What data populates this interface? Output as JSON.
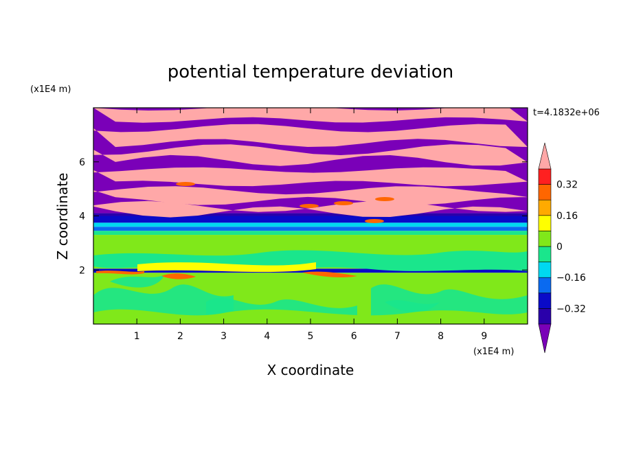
{
  "chart_data": {
    "type": "heatmap",
    "title": "potential temperature deviation",
    "xlabel": "X coordinate",
    "ylabel": "Z coordinate",
    "x_units": "(x1E4 m)",
    "y_units": "(x1E4 m)",
    "time_label": "t=4.1832e+06",
    "xlim": [
      0,
      10
    ],
    "ylim": [
      0,
      8
    ],
    "x_ticks": [
      "1",
      "2",
      "3",
      "4",
      "5",
      "6",
      "7",
      "8",
      "9"
    ],
    "y_ticks": [
      "2",
      "4",
      "6"
    ],
    "colorbar": {
      "levels": [
        -0.4,
        -0.32,
        -0.24,
        -0.16,
        -0.08,
        0,
        0.08,
        0.16,
        0.24,
        0.32,
        0.4
      ],
      "labels": [
        "0.32",
        "0.16",
        "0",
        "−0.16",
        "−0.32"
      ],
      "label_values": [
        0.32,
        0.16,
        0,
        -0.16,
        -0.32
      ],
      "colors": [
        "#7a00b8",
        "#2a00aa",
        "#0a0ac8",
        "#0a6af0",
        "#00d8f0",
        "#1ae68c",
        "#80e81a",
        "#ffff00",
        "#ffaa00",
        "#ff6600",
        "#ff2020",
        "#ffa8a8"
      ],
      "extend": "both"
    },
    "layers": [
      {
        "z_min": 0.0,
        "z_max": 1.9,
        "description_value": 0.04,
        "pattern": [
          "lower-green"
        ]
      },
      {
        "z_min": 1.9,
        "z_max": 2.05,
        "value": -0.3
      },
      {
        "z_min": 2.05,
        "z_max": 3.3,
        "value": 0.04
      },
      {
        "z_min": 3.3,
        "z_max": 3.45,
        "value": -0.05
      },
      {
        "z_min": 3.45,
        "z_max": 3.6,
        "value": -0.2
      },
      {
        "z_min": 3.6,
        "z_max": 3.75,
        "value": -0.12
      },
      {
        "z_min": 3.75,
        "z_max": 4.0,
        "value": -0.32
      },
      {
        "z_min": 4.0,
        "z_max": 4.1,
        "value": -0.4
      },
      {
        "z_min": 4.1,
        "z_max": 8.0,
        "value": 0.0,
        "pattern": [
          "alternating-bands"
        ]
      }
    ]
  }
}
